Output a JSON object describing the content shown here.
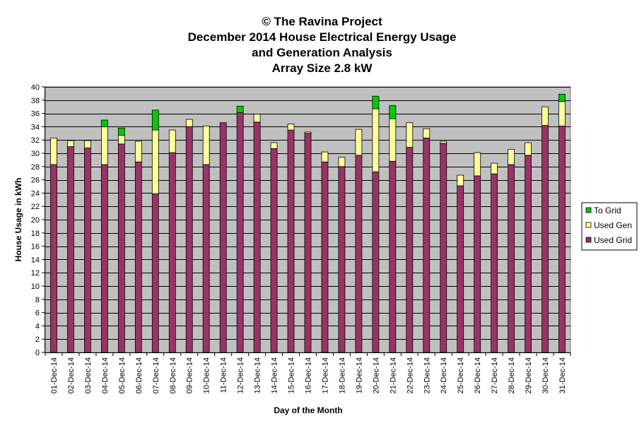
{
  "chart_data": {
    "type": "bar",
    "stacked": true,
    "title_lines": [
      "© The Ravina Project",
      "December 2014 House Electrical Energy Usage",
      "and Generation Analysis",
      "Array Size 2.8 kW"
    ],
    "xlabel": "Day of the Month",
    "ylabel": "House Usage in kWh",
    "ylim": [
      0,
      40
    ],
    "yticks": [
      0,
      2,
      4,
      6,
      8,
      10,
      12,
      14,
      16,
      18,
      20,
      22,
      24,
      26,
      28,
      30,
      32,
      34,
      36,
      38,
      40
    ],
    "grid": true,
    "legend_position": "right",
    "categories": [
      "01-Dec-14",
      "02-Dec-14",
      "03-Dec-14",
      "04-Dec-14",
      "05-Dec-14",
      "06-Dec-14",
      "07-Dec-14",
      "08-Dec-14",
      "09-Dec-14",
      "10-Dec-14",
      "11-Dec-14",
      "12-Dec-14",
      "13-Dec-14",
      "14-Dec-14",
      "15-Dec-14",
      "16-Dec-14",
      "17-Dec-14",
      "18-Dec-14",
      "19-Dec-14",
      "20-Dec-14",
      "21-Dec-14",
      "22-Dec-14",
      "23-Dec-14",
      "24-Dec-14",
      "25-Dec-14",
      "26-Dec-14",
      "27-Dec-14",
      "28-Dec-14",
      "29-Dec-14",
      "30-Dec-14",
      "31-Dec-14"
    ],
    "series": [
      {
        "name": "Used Grid",
        "color": "#993366",
        "values": [
          28.3,
          31.0,
          30.8,
          28.3,
          31.4,
          28.7,
          23.9,
          30.1,
          34.0,
          28.3,
          34.6,
          36.1,
          34.7,
          30.7,
          33.5,
          33.0,
          28.7,
          28.0,
          29.7,
          27.2,
          28.8,
          30.9,
          32.3,
          31.5,
          25.1,
          26.6,
          26.9,
          28.3,
          29.7,
          34.2,
          34.1
        ]
      },
      {
        "name": "Used Gen",
        "color": "#ffff99",
        "values": [
          4.0,
          0.9,
          1.1,
          5.7,
          1.3,
          3.1,
          9.6,
          3.4,
          1.1,
          5.8,
          0.0,
          0.0,
          1.2,
          0.9,
          0.9,
          0.2,
          1.5,
          1.4,
          3.9,
          9.5,
          6.4,
          3.7,
          1.4,
          0.3,
          1.6,
          3.5,
          1.6,
          2.3,
          1.9,
          2.8,
          3.7
        ]
      },
      {
        "name": "To Grid",
        "color": "#00cc00",
        "values": [
          0,
          0,
          0,
          1.0,
          1.1,
          0,
          3.0,
          0,
          0,
          0,
          0,
          1.0,
          0,
          0,
          0,
          0,
          0,
          0,
          0,
          1.9,
          2.0,
          0,
          0,
          0,
          0,
          0,
          0,
          0,
          0,
          0,
          1.1
        ]
      }
    ],
    "legend_order": [
      "To Grid",
      "Used Gen",
      "Used Grid"
    ],
    "colors": {
      "plot_background": "#c0c0c0",
      "gridline": "#000000"
    }
  }
}
